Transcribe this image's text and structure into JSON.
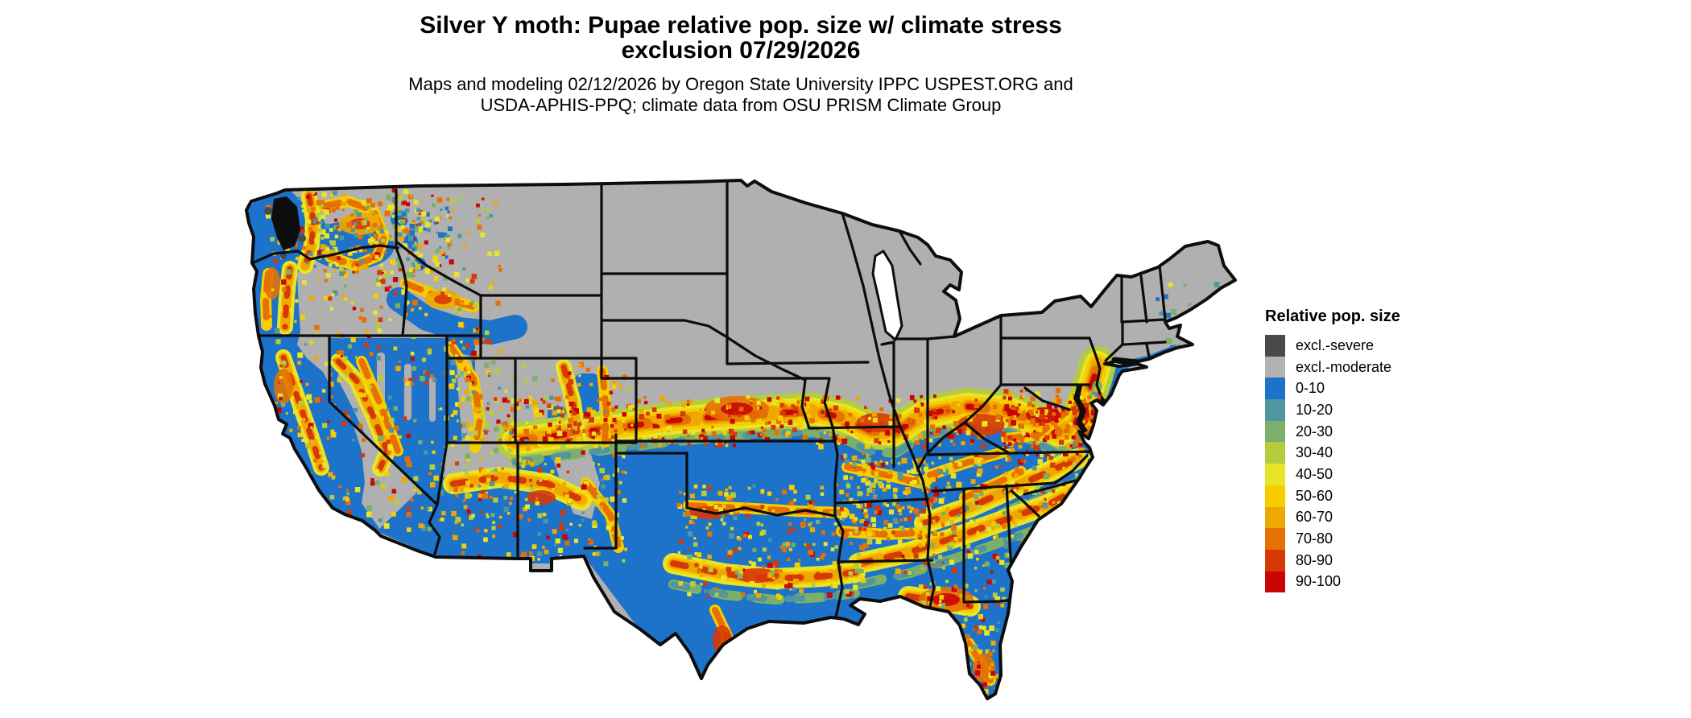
{
  "title": {
    "line1": "Silver Y moth: Pupae relative pop. size w/ climate stress",
    "line2": "exclusion 07/29/2026"
  },
  "subtitle": {
    "line1": "Maps and modeling 02/12/2026 by Oregon State University IPPC USPEST.ORG and",
    "line2": "USDA-APHIS-PPQ; climate data from OSU PRISM Climate Group"
  },
  "legend": {
    "title": "Relative pop. size",
    "items": [
      {
        "key": "excl_severe",
        "label": "excl.-severe",
        "color": "#4a4a4a"
      },
      {
        "key": "excl_moderate",
        "label": "excl.-moderate",
        "color": "#b3b3b3"
      },
      {
        "key": "b0010",
        "label": "0-10",
        "color": "#1d72c9"
      },
      {
        "key": "b1020",
        "label": "10-20",
        "color": "#4f96a0"
      },
      {
        "key": "b2030",
        "label": "20-30",
        "color": "#7cb06a"
      },
      {
        "key": "b3040",
        "label": "30-40",
        "color": "#b5cc3c"
      },
      {
        "key": "b4050",
        "label": "40-50",
        "color": "#e8e528"
      },
      {
        "key": "b5060",
        "label": "50-60",
        "color": "#f6ce00"
      },
      {
        "key": "b6070",
        "label": "60-70",
        "color": "#efa800"
      },
      {
        "key": "b7080",
        "label": "70-80",
        "color": "#e67103"
      },
      {
        "key": "b8090",
        "label": "80-90",
        "color": "#d83805"
      },
      {
        "key": "b90100",
        "label": "90-100",
        "color": "#c90505"
      }
    ]
  },
  "map": {
    "region": "Continental United States relative population size raster map",
    "land_base_color": "#b0b0b0",
    "water_line_color": "#0d0d0d",
    "lake_color": "#ffffff",
    "border_color": "#0d0d0d"
  }
}
